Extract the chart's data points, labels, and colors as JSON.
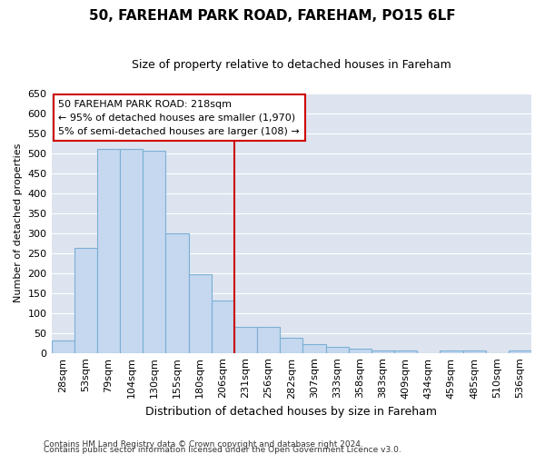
{
  "title": "50, FAREHAM PARK ROAD, FAREHAM, PO15 6LF",
  "subtitle": "Size of property relative to detached houses in Fareham",
  "xlabel": "Distribution of detached houses by size in Fareham",
  "ylabel": "Number of detached properties",
  "categories": [
    "28sqm",
    "53sqm",
    "79sqm",
    "104sqm",
    "130sqm",
    "155sqm",
    "180sqm",
    "206sqm",
    "231sqm",
    "256sqm",
    "282sqm",
    "307sqm",
    "333sqm",
    "358sqm",
    "383sqm",
    "409sqm",
    "434sqm",
    "459sqm",
    "485sqm",
    "510sqm",
    "536sqm"
  ],
  "values": [
    30,
    263,
    511,
    510,
    507,
    300,
    196,
    131,
    65,
    65,
    37,
    23,
    15,
    10,
    7,
    5,
    0,
    5,
    5,
    0,
    5
  ],
  "bar_color": "#c5d8ef",
  "bar_edge_color": "#7bafd4",
  "plot_bg_color": "#dde4f0",
  "fig_bg_color": "#ffffff",
  "grid_color": "#ffffff",
  "vline_color": "#cc0000",
  "annotation_line1": "50 FAREHAM PARK ROAD: 218sqm",
  "annotation_line2": "← 95% of detached houses are smaller (1,970)",
  "annotation_line3": "5% of semi-detached houses are larger (108) →",
  "annotation_box_color": "#cc0000",
  "ylim": [
    0,
    650
  ],
  "yticks": [
    0,
    50,
    100,
    150,
    200,
    250,
    300,
    350,
    400,
    450,
    500,
    550,
    600,
    650
  ],
  "footer_line1": "Contains HM Land Registry data © Crown copyright and database right 2024.",
  "footer_line2": "Contains public sector information licensed under the Open Government Licence v3.0.",
  "title_fontsize": 11,
  "subtitle_fontsize": 9,
  "ylabel_fontsize": 8,
  "xlabel_fontsize": 9,
  "tick_fontsize": 8,
  "footer_fontsize": 6.5
}
